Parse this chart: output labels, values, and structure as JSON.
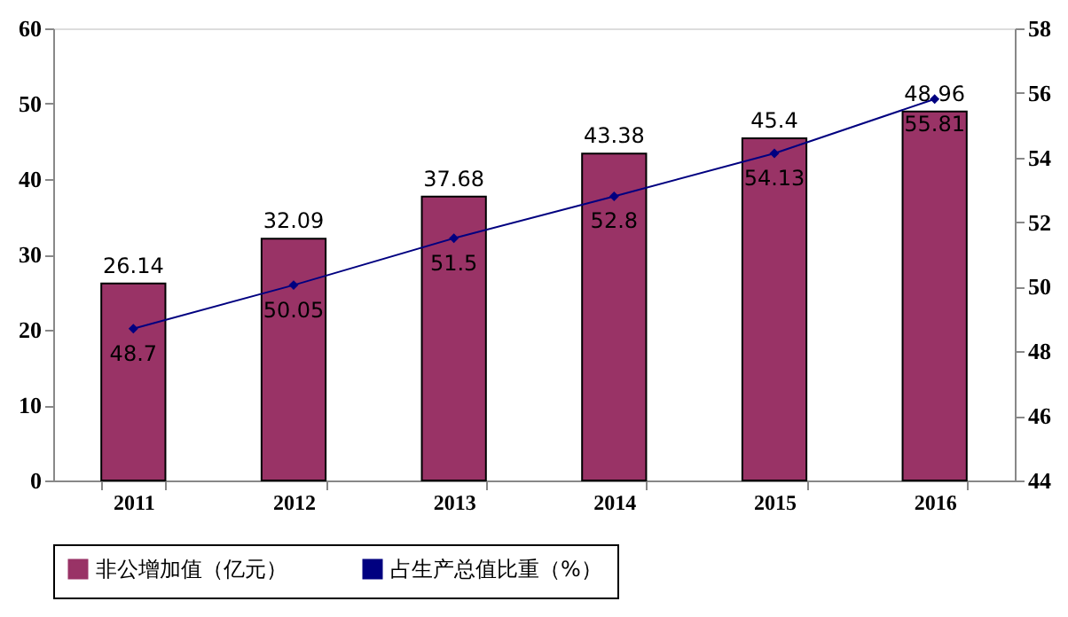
{
  "chart_data": {
    "type": "bar",
    "categories": [
      "2011",
      "2012",
      "2013",
      "2014",
      "2015",
      "2016"
    ],
    "series": [
      {
        "name": "非公增加值（亿元）",
        "color": "#993366",
        "values": [
          26.14,
          32.09,
          37.68,
          43.38,
          45.4,
          48.96
        ]
      },
      {
        "name": "占生产总值比重（%）",
        "color": "#000080",
        "type": "line",
        "axis": "y2",
        "values": [
          48.7,
          50.05,
          51.5,
          52.8,
          54.13,
          55.81
        ]
      }
    ],
    "ylim": [
      0,
      60
    ],
    "yticks": [
      0,
      10,
      20,
      30,
      40,
      50,
      60
    ],
    "y2lim": [
      44,
      58
    ],
    "y2ticks": [
      44,
      46,
      48,
      50,
      52,
      54,
      56,
      58
    ],
    "data_labels": true,
    "grid": false,
    "legend": "bottom",
    "marker": "diamond",
    "line_style": "solid"
  }
}
